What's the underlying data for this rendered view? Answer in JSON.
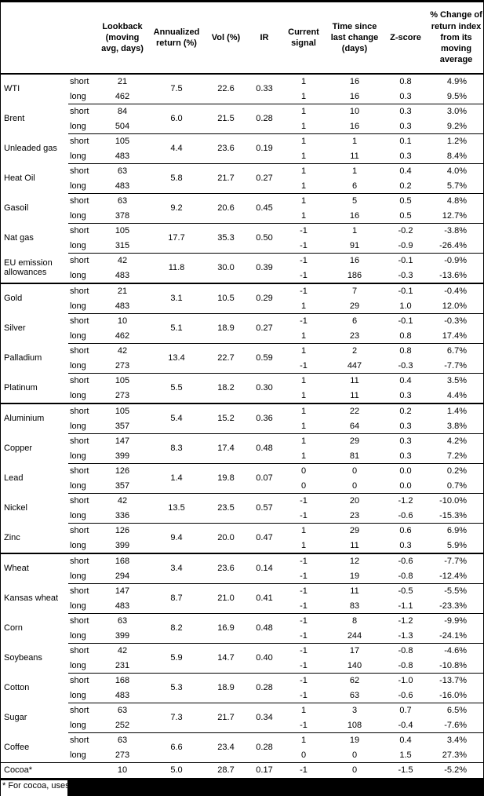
{
  "footnote": "* For cocoa, uses o",
  "table": {
    "column_headers": [
      {
        "key": "name",
        "label": ""
      },
      {
        "key": "side",
        "label": ""
      },
      {
        "key": "lookback",
        "label": "Lookback\n(moving\navg, days)"
      },
      {
        "key": "ann",
        "label": "Annualized\nreturn (%)"
      },
      {
        "key": "vol",
        "label": "Vol (%)"
      },
      {
        "key": "ir",
        "label": "IR"
      },
      {
        "key": "signal",
        "label": "Current\nsignal"
      },
      {
        "key": "time",
        "label": "Time since\nlast change\n(days)"
      },
      {
        "key": "z",
        "label": "Z-score"
      },
      {
        "key": "pct",
        "label": "% Change of\nreturn index\nfrom its\nmoving\naverage"
      }
    ],
    "groups": [
      {
        "name": "WTI",
        "ann": "7.5",
        "vol": "22.6",
        "ir": "0.33",
        "section": false,
        "rows": [
          {
            "side": "short",
            "lookback": "21",
            "signal": "1",
            "time": "16",
            "z": "0.8",
            "pct": "4.9%"
          },
          {
            "side": "long",
            "lookback": "462",
            "signal": "1",
            "time": "16",
            "z": "0.3",
            "pct": "9.5%"
          }
        ]
      },
      {
        "name": "Brent",
        "ann": "6.0",
        "vol": "21.5",
        "ir": "0.28",
        "section": false,
        "rows": [
          {
            "side": "short",
            "lookback": "84",
            "signal": "1",
            "time": "10",
            "z": "0.3",
            "pct": "3.0%"
          },
          {
            "side": "long",
            "lookback": "504",
            "signal": "1",
            "time": "16",
            "z": "0.3",
            "pct": "9.2%"
          }
        ]
      },
      {
        "name": "Unleaded gas",
        "ann": "4.4",
        "vol": "23.6",
        "ir": "0.19",
        "section": false,
        "rows": [
          {
            "side": "short",
            "lookback": "105",
            "signal": "1",
            "time": "1",
            "z": "0.1",
            "pct": "1.2%"
          },
          {
            "side": "long",
            "lookback": "483",
            "signal": "1",
            "time": "11",
            "z": "0.3",
            "pct": "8.4%"
          }
        ]
      },
      {
        "name": "Heat Oil",
        "ann": "5.8",
        "vol": "21.7",
        "ir": "0.27",
        "section": false,
        "rows": [
          {
            "side": "short",
            "lookback": "63",
            "signal": "1",
            "time": "1",
            "z": "0.4",
            "pct": "4.0%"
          },
          {
            "side": "long",
            "lookback": "483",
            "signal": "1",
            "time": "6",
            "z": "0.2",
            "pct": "5.7%"
          }
        ]
      },
      {
        "name": "Gasoil",
        "ann": "9.2",
        "vol": "20.6",
        "ir": "0.45",
        "section": false,
        "rows": [
          {
            "side": "short",
            "lookback": "63",
            "signal": "1",
            "time": "5",
            "z": "0.5",
            "pct": "4.8%"
          },
          {
            "side": "long",
            "lookback": "378",
            "signal": "1",
            "time": "16",
            "z": "0.5",
            "pct": "12.7%"
          }
        ]
      },
      {
        "name": "Nat gas",
        "ann": "17.7",
        "vol": "35.3",
        "ir": "0.50",
        "section": false,
        "rows": [
          {
            "side": "short",
            "lookback": "105",
            "signal": "-1",
            "time": "1",
            "z": "-0.2",
            "pct": "-3.8%"
          },
          {
            "side": "long",
            "lookback": "315",
            "signal": "-1",
            "time": "91",
            "z": "-0.9",
            "pct": "-26.4%"
          }
        ]
      },
      {
        "name": "EU emission allowances",
        "ann": "11.8",
        "vol": "30.0",
        "ir": "0.39",
        "section": false,
        "rows": [
          {
            "side": "short",
            "lookback": "42",
            "signal": "-1",
            "time": "16",
            "z": "-0.1",
            "pct": "-0.9%"
          },
          {
            "side": "long",
            "lookback": "483",
            "signal": "-1",
            "time": "186",
            "z": "-0.3",
            "pct": "-13.6%"
          }
        ]
      },
      {
        "name": "Gold",
        "ann": "3.1",
        "vol": "10.5",
        "ir": "0.29",
        "section": true,
        "rows": [
          {
            "side": "short",
            "lookback": "21",
            "signal": "-1",
            "time": "7",
            "z": "-0.1",
            "pct": "-0.4%"
          },
          {
            "side": "long",
            "lookback": "483",
            "signal": "1",
            "time": "29",
            "z": "1.0",
            "pct": "12.0%"
          }
        ]
      },
      {
        "name": "Silver",
        "ann": "5.1",
        "vol": "18.9",
        "ir": "0.27",
        "section": false,
        "rows": [
          {
            "side": "short",
            "lookback": "10",
            "signal": "-1",
            "time": "6",
            "z": "-0.1",
            "pct": "-0.3%"
          },
          {
            "side": "long",
            "lookback": "462",
            "signal": "1",
            "time": "23",
            "z": "0.8",
            "pct": "17.4%"
          }
        ]
      },
      {
        "name": "Palladium",
        "ann": "13.4",
        "vol": "22.7",
        "ir": "0.59",
        "section": false,
        "rows": [
          {
            "side": "short",
            "lookback": "42",
            "signal": "1",
            "time": "2",
            "z": "0.8",
            "pct": "6.7%"
          },
          {
            "side": "long",
            "lookback": "273",
            "signal": "-1",
            "time": "447",
            "z": "-0.3",
            "pct": "-7.7%"
          }
        ]
      },
      {
        "name": "Platinum",
        "ann": "5.5",
        "vol": "18.2",
        "ir": "0.30",
        "section": false,
        "rows": [
          {
            "side": "short",
            "lookback": "105",
            "signal": "1",
            "time": "11",
            "z": "0.4",
            "pct": "3.5%"
          },
          {
            "side": "long",
            "lookback": "273",
            "signal": "1",
            "time": "11",
            "z": "0.3",
            "pct": "4.4%"
          }
        ]
      },
      {
        "name": "Aluminium",
        "ann": "5.4",
        "vol": "15.2",
        "ir": "0.36",
        "section": true,
        "rows": [
          {
            "side": "short",
            "lookback": "105",
            "signal": "1",
            "time": "22",
            "z": "0.2",
            "pct": "1.4%"
          },
          {
            "side": "long",
            "lookback": "357",
            "signal": "1",
            "time": "64",
            "z": "0.3",
            "pct": "3.8%"
          }
        ]
      },
      {
        "name": "Copper",
        "ann": "8.3",
        "vol": "17.4",
        "ir": "0.48",
        "section": false,
        "rows": [
          {
            "side": "short",
            "lookback": "147",
            "signal": "1",
            "time": "29",
            "z": "0.3",
            "pct": "4.2%"
          },
          {
            "side": "long",
            "lookback": "399",
            "signal": "1",
            "time": "81",
            "z": "0.3",
            "pct": "7.2%"
          }
        ]
      },
      {
        "name": "Lead",
        "ann": "1.4",
        "vol": "19.8",
        "ir": "0.07",
        "section": false,
        "rows": [
          {
            "side": "short",
            "lookback": "126",
            "signal": "0",
            "time": "0",
            "z": "0.0",
            "pct": "0.2%"
          },
          {
            "side": "long",
            "lookback": "357",
            "signal": "0",
            "time": "0",
            "z": "0.0",
            "pct": "0.7%"
          }
        ]
      },
      {
        "name": "Nickel",
        "ann": "13.5",
        "vol": "23.5",
        "ir": "0.57",
        "section": false,
        "rows": [
          {
            "side": "short",
            "lookback": "42",
            "signal": "-1",
            "time": "20",
            "z": "-1.2",
            "pct": "-10.0%"
          },
          {
            "side": "long",
            "lookback": "336",
            "signal": "-1",
            "time": "23",
            "z": "-0.6",
            "pct": "-15.3%"
          }
        ]
      },
      {
        "name": "Zinc",
        "ann": "9.4",
        "vol": "20.0",
        "ir": "0.47",
        "section": false,
        "rows": [
          {
            "side": "short",
            "lookback": "126",
            "signal": "1",
            "time": "29",
            "z": "0.6",
            "pct": "6.9%"
          },
          {
            "side": "long",
            "lookback": "399",
            "signal": "1",
            "time": "11",
            "z": "0.3",
            "pct": "5.9%"
          }
        ]
      },
      {
        "name": "Wheat",
        "ann": "3.4",
        "vol": "23.6",
        "ir": "0.14",
        "section": true,
        "rows": [
          {
            "side": "short",
            "lookback": "168",
            "signal": "-1",
            "time": "12",
            "z": "-0.6",
            "pct": "-7.7%"
          },
          {
            "side": "long",
            "lookback": "294",
            "signal": "-1",
            "time": "19",
            "z": "-0.8",
            "pct": "-12.4%"
          }
        ]
      },
      {
        "name": "Kansas wheat",
        "ann": "8.7",
        "vol": "21.0",
        "ir": "0.41",
        "section": false,
        "rows": [
          {
            "side": "short",
            "lookback": "147",
            "signal": "-1",
            "time": "11",
            "z": "-0.5",
            "pct": "-5.5%"
          },
          {
            "side": "long",
            "lookback": "483",
            "signal": "-1",
            "time": "83",
            "z": "-1.1",
            "pct": "-23.3%"
          }
        ]
      },
      {
        "name": "Corn",
        "ann": "8.2",
        "vol": "16.9",
        "ir": "0.48",
        "section": false,
        "rows": [
          {
            "side": "short",
            "lookback": "63",
            "signal": "-1",
            "time": "8",
            "z": "-1.2",
            "pct": "-9.9%"
          },
          {
            "side": "long",
            "lookback": "399",
            "signal": "-1",
            "time": "244",
            "z": "-1.3",
            "pct": "-24.1%"
          }
        ]
      },
      {
        "name": "Soybeans",
        "ann": "5.9",
        "vol": "14.7",
        "ir": "0.40",
        "section": false,
        "rows": [
          {
            "side": "short",
            "lookback": "42",
            "signal": "-1",
            "time": "17",
            "z": "-0.8",
            "pct": "-4.6%"
          },
          {
            "side": "long",
            "lookback": "231",
            "signal": "-1",
            "time": "140",
            "z": "-0.8",
            "pct": "-10.8%"
          }
        ]
      },
      {
        "name": "Cotton",
        "ann": "5.3",
        "vol": "18.9",
        "ir": "0.28",
        "section": false,
        "rows": [
          {
            "side": "short",
            "lookback": "168",
            "signal": "-1",
            "time": "62",
            "z": "-1.0",
            "pct": "-13.7%"
          },
          {
            "side": "long",
            "lookback": "483",
            "signal": "-1",
            "time": "63",
            "z": "-0.6",
            "pct": "-16.0%"
          }
        ]
      },
      {
        "name": "Sugar",
        "ann": "7.3",
        "vol": "21.7",
        "ir": "0.34",
        "section": false,
        "rows": [
          {
            "side": "short",
            "lookback": "63",
            "signal": "1",
            "time": "3",
            "z": "0.7",
            "pct": "6.5%"
          },
          {
            "side": "long",
            "lookback": "252",
            "signal": "-1",
            "time": "108",
            "z": "-0.4",
            "pct": "-7.6%"
          }
        ]
      },
      {
        "name": "Coffee",
        "ann": "6.6",
        "vol": "23.4",
        "ir": "0.28",
        "section": false,
        "rows": [
          {
            "side": "short",
            "lookback": "63",
            "signal": "1",
            "time": "19",
            "z": "0.4",
            "pct": "3.4%"
          },
          {
            "side": "long",
            "lookback": "273",
            "signal": "0",
            "time": "0",
            "z": "1.5",
            "pct": "27.3%"
          }
        ]
      },
      {
        "name": "Cocoa*",
        "ann": "5.0",
        "vol": "28.7",
        "ir": "0.17",
        "section": false,
        "full_line": true,
        "rows": [
          {
            "side": "",
            "lookback": "10",
            "signal": "-1",
            "time": "0",
            "z": "-1.5",
            "pct": "-5.2%"
          }
        ]
      }
    ]
  }
}
